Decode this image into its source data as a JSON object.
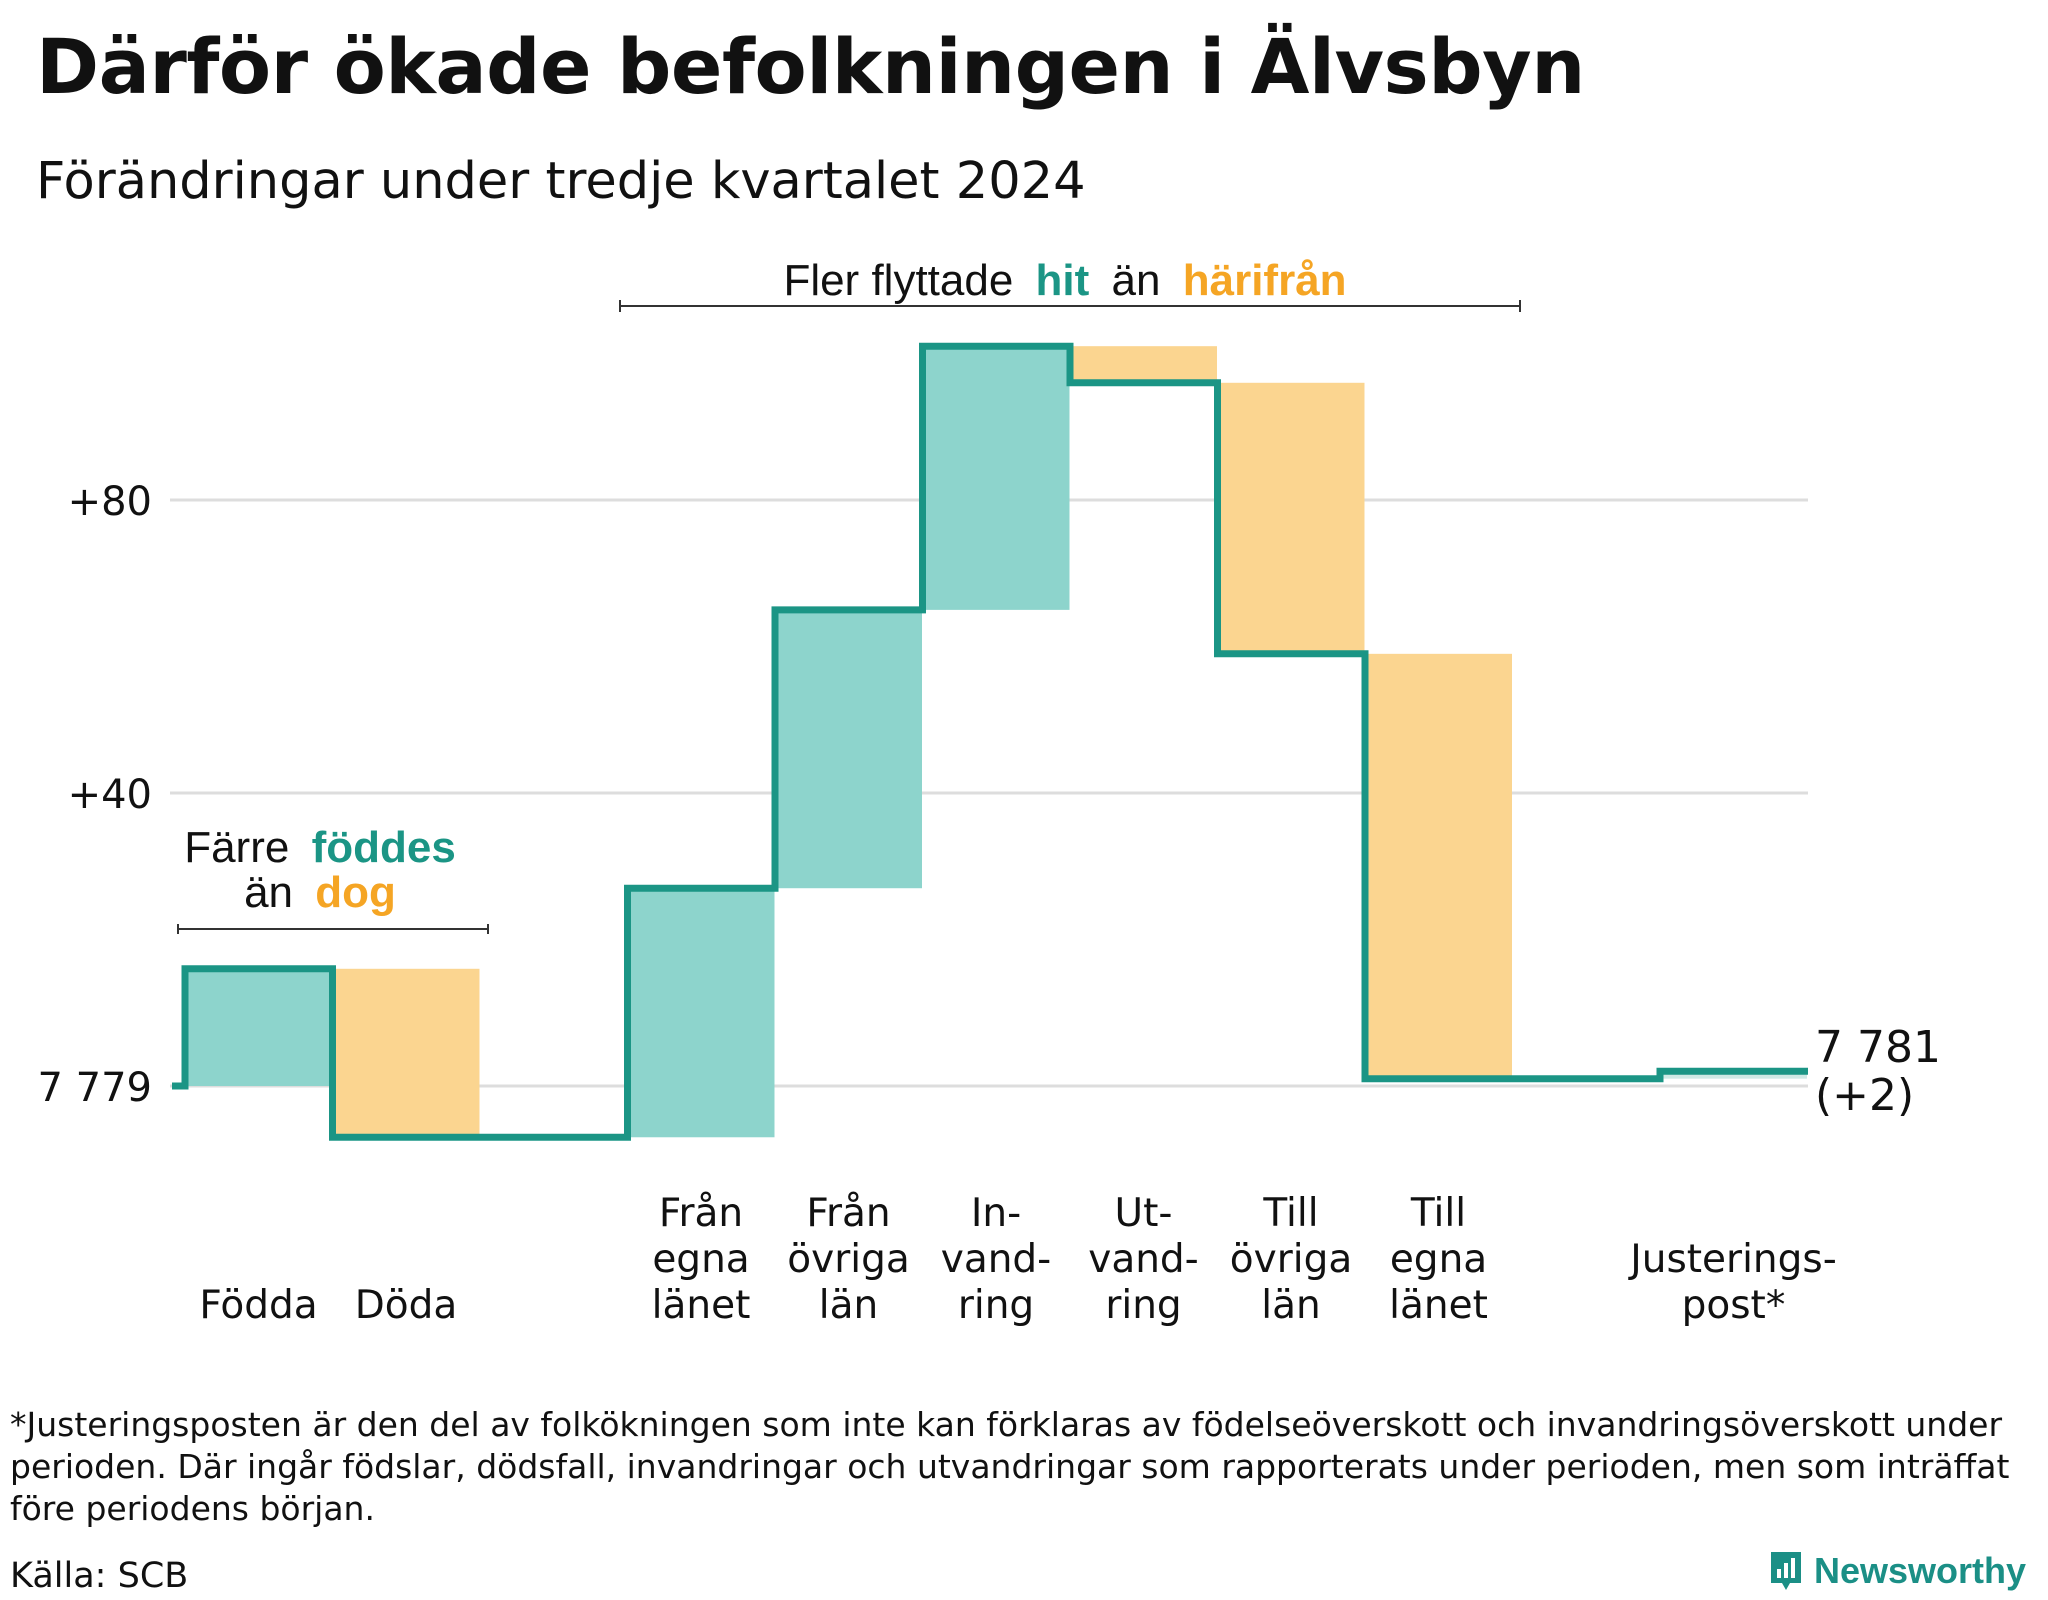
{
  "title": "Därför ökade befolkningen i Älvsbyn",
  "subtitle": "Förändringar under tredje kvartalet 2024",
  "colors": {
    "increase": "#8dd4cc",
    "decrease": "#fbd590",
    "line": "#1b9585",
    "grid": "#dddddd",
    "accent_teal": "#1b9585",
    "accent_orange": "#f5a524"
  },
  "annotations": {
    "births": {
      "pre": "Färre",
      "teal": "föddes",
      "mid": "än",
      "orange": "dog"
    },
    "moves": {
      "pre": "Fler flyttade",
      "teal": "hit",
      "mid": "än",
      "orange": "härifrån"
    }
  },
  "chart_data": {
    "type": "waterfall",
    "title": "Därför ökade befolkningen i Älvsbyn",
    "subtitle": "Förändringar under tredje kvartalet 2024",
    "base_value": 7779,
    "y_ticks": [
      {
        "value": 0,
        "label": "7 779"
      },
      {
        "value": 40,
        "label": "+40"
      },
      {
        "value": 80,
        "label": "+80"
      }
    ],
    "ylim": [
      -10,
      115
    ],
    "categories": [
      "Födda",
      "Döda",
      "Från egna länet",
      "Från övriga län",
      "Invandring",
      "Utvandring",
      "Till övriga län",
      "Till egna länet",
      "Justeringspost*"
    ],
    "category_labels": [
      [
        "Födda"
      ],
      [
        "Döda"
      ],
      [
        "Från",
        "egna",
        "länet"
      ],
      [
        "Från",
        "övriga",
        "län"
      ],
      [
        "In-",
        "vand-",
        "ring"
      ],
      [
        "Ut-",
        "vand-",
        "ring"
      ],
      [
        "Till",
        "övriga",
        "län"
      ],
      [
        "Till",
        "egna",
        "länet"
      ],
      [
        "Justerings-",
        "post*"
      ]
    ],
    "values": [
      16,
      -23,
      34,
      38,
      36,
      -5,
      -37,
      -58,
      1
    ],
    "end_label": "7 781",
    "end_change": "(+2)",
    "grid": true
  },
  "footnote": "*Justeringsposten är den del av folkökningen som inte kan förklaras av födelseöverskott och invandringsöverskott under perioden. Där ingår födslar, dödsfall, invandringar och utvandringar som rapporterats under perioden, men som inträffat före periodens början.",
  "source": "Källa: SCB",
  "brand": "Newsworthy"
}
